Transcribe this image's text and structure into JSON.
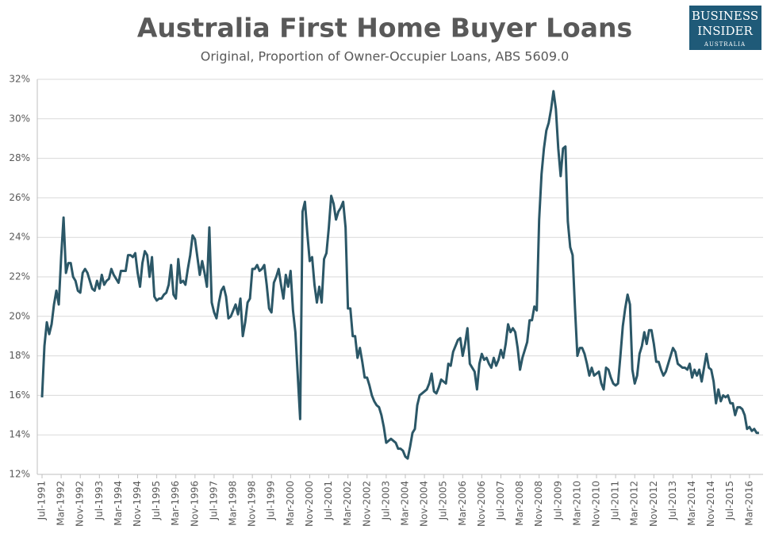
{
  "chart_data": {
    "type": "line",
    "title": "Australia First Home Buyer Loans",
    "subtitle": "Original, Proportion of Owner-Occupier Loans, ABS 5609.0",
    "logo": {
      "line1": "BUSINESS",
      "line2": "INSIDER",
      "line3": "AUSTRALIA"
    },
    "categories": [
      "Jul-1991",
      null,
      null,
      null,
      null,
      null,
      null,
      null,
      "Mar-1992",
      null,
      null,
      null,
      null,
      null,
      null,
      null,
      "Nov-1992",
      null,
      null,
      null,
      null,
      null,
      null,
      null,
      "Jul-1993",
      null,
      null,
      null,
      null,
      null,
      null,
      null,
      "Mar-1994",
      null,
      null,
      null,
      null,
      null,
      null,
      null,
      "Nov-1994",
      null,
      null,
      null,
      null,
      null,
      null,
      null,
      "Jul-1995",
      null,
      null,
      null,
      null,
      null,
      null,
      null,
      "Mar-1996",
      null,
      null,
      null,
      null,
      null,
      null,
      null,
      "Nov-1996",
      null,
      null,
      null,
      null,
      null,
      null,
      null,
      "Jul-1997",
      null,
      null,
      null,
      null,
      null,
      null,
      null,
      "Mar-1998",
      null,
      null,
      null,
      null,
      null,
      null,
      null,
      "Nov-1998",
      null,
      null,
      null,
      null,
      null,
      null,
      null,
      "Jul-1999",
      null,
      null,
      null,
      null,
      null,
      null,
      null,
      "Mar-2000",
      null,
      null,
      null,
      null,
      null,
      null,
      null,
      "Nov-2000",
      null,
      null,
      null,
      null,
      null,
      null,
      null,
      "Jul-2001",
      null,
      null,
      null,
      null,
      null,
      null,
      null,
      "Mar-2002",
      null,
      null,
      null,
      null,
      null,
      null,
      null,
      "Nov-2002",
      null,
      null,
      null,
      null,
      null,
      null,
      null,
      "Jul-2003",
      null,
      null,
      null,
      null,
      null,
      null,
      null,
      "Mar-2004",
      null,
      null,
      null,
      null,
      null,
      null,
      null,
      "Nov-2004",
      null,
      null,
      null,
      null,
      null,
      null,
      null,
      "Jul-2005",
      null,
      null,
      null,
      null,
      null,
      null,
      null,
      "Mar-2006",
      null,
      null,
      null,
      null,
      null,
      null,
      null,
      "Nov-2006",
      null,
      null,
      null,
      null,
      null,
      null,
      null,
      "Jul-2007",
      null,
      null,
      null,
      null,
      null,
      null,
      null,
      "Mar-2008",
      null,
      null,
      null,
      null,
      null,
      null,
      null,
      "Nov-2008",
      null,
      null,
      null,
      null,
      null,
      null,
      null,
      "Jul-2009",
      null,
      null,
      null,
      null,
      null,
      null,
      null,
      "Mar-2010",
      null,
      null,
      null,
      null,
      null,
      null,
      null,
      "Nov-2010",
      null,
      null,
      null,
      null,
      null,
      null,
      null,
      "Jul-2011",
      null,
      null,
      null,
      null,
      null,
      null,
      null,
      "Mar-2012",
      null,
      null,
      null,
      null,
      null,
      null,
      null,
      "Nov-2012",
      null,
      null,
      null,
      null,
      null,
      null,
      null,
      "Jul-2013",
      null,
      null,
      null,
      null,
      null,
      null,
      null,
      "Mar-2014",
      null,
      null,
      null,
      null,
      null,
      null,
      null,
      "Nov-2014",
      null,
      null,
      null,
      null,
      null,
      null,
      null,
      "Jul-2015",
      null,
      null,
      null,
      null,
      null,
      null,
      null,
      "Mar-2016",
      null,
      null,
      null,
      null
    ],
    "series": [
      {
        "color": "#2b5767",
        "values": [
          15.9,
          18.5,
          19.7,
          19.1,
          19.6,
          20.6,
          21.3,
          20.6,
          23.0,
          25.0,
          22.2,
          22.7,
          22.7,
          22.0,
          21.8,
          21.3,
          21.2,
          22.2,
          22.4,
          22.2,
          21.8,
          21.4,
          21.3,
          21.8,
          21.4,
          22.1,
          21.6,
          21.8,
          21.9,
          22.4,
          22.1,
          21.9,
          21.7,
          22.3,
          22.3,
          22.3,
          23.1,
          23.1,
          23.0,
          23.2,
          22.2,
          21.5,
          22.7,
          23.3,
          23.1,
          22.0,
          23.0,
          21.0,
          20.8,
          20.9,
          20.9,
          21.1,
          21.2,
          21.6,
          22.6,
          21.1,
          20.9,
          22.9,
          21.7,
          21.8,
          21.6,
          22.4,
          23.1,
          24.1,
          23.9,
          23.0,
          22.1,
          22.8,
          22.2,
          21.5,
          24.5,
          20.7,
          20.2,
          19.9,
          20.7,
          21.3,
          21.5,
          21.0,
          19.9,
          20.0,
          20.3,
          20.6,
          20.1,
          20.9,
          19.0,
          19.7,
          20.7,
          20.9,
          22.4,
          22.4,
          22.6,
          22.3,
          22.4,
          22.6,
          21.6,
          20.4,
          20.2,
          21.7,
          22.0,
          22.4,
          21.6,
          20.9,
          22.1,
          21.5,
          22.3,
          20.3,
          19.2,
          17.0,
          14.8,
          25.3,
          25.8,
          24.2,
          22.8,
          23.0,
          21.6,
          20.7,
          21.5,
          20.7,
          22.9,
          23.2,
          24.5,
          26.1,
          25.7,
          24.9,
          25.3,
          25.5,
          25.8,
          24.5,
          20.4,
          20.4,
          19.0,
          19.0,
          17.9,
          18.4,
          17.7,
          16.9,
          16.9,
          16.5,
          16.0,
          15.7,
          15.5,
          15.4,
          15.0,
          14.4,
          13.6,
          13.7,
          13.8,
          13.7,
          13.6,
          13.3,
          13.3,
          13.2,
          12.9,
          12.8,
          13.4,
          14.1,
          14.3,
          15.5,
          16.0,
          16.1,
          16.2,
          16.3,
          16.6,
          17.1,
          16.2,
          16.1,
          16.4,
          16.8,
          16.7,
          16.6,
          17.6,
          17.5,
          18.2,
          18.5,
          18.8,
          18.9,
          18.0,
          18.6,
          19.4,
          17.6,
          17.4,
          17.2,
          16.3,
          17.6,
          18.1,
          17.8,
          17.9,
          17.6,
          17.4,
          17.9,
          17.5,
          17.8,
          18.3,
          17.9,
          18.6,
          19.6,
          19.2,
          19.4,
          19.2,
          18.4,
          17.3,
          17.9,
          18.3,
          18.7,
          19.8,
          19.8,
          20.5,
          20.3,
          24.9,
          27.2,
          28.5,
          29.4,
          29.8,
          30.5,
          31.4,
          30.5,
          28.5,
          27.1,
          28.5,
          28.6,
          24.8,
          23.5,
          23.1,
          20.4,
          18.0,
          18.4,
          18.4,
          18.1,
          17.6,
          17.0,
          17.4,
          17.0,
          17.1,
          17.2,
          16.6,
          16.3,
          17.4,
          17.3,
          16.9,
          16.6,
          16.5,
          16.6,
          18.0,
          19.5,
          20.4,
          21.1,
          20.6,
          17.3,
          16.6,
          17.0,
          18.1,
          18.5,
          19.2,
          18.6,
          19.3,
          19.3,
          18.6,
          17.7,
          17.7,
          17.3,
          17.0,
          17.2,
          17.6,
          18.0,
          18.4,
          18.2,
          17.6,
          17.5,
          17.4,
          17.4,
          17.3,
          17.6,
          16.9,
          17.3,
          17.0,
          17.3,
          16.7,
          17.4,
          18.1,
          17.4,
          17.3,
          16.7,
          15.6,
          16.3,
          15.7,
          16.0,
          15.9,
          16.0,
          15.6,
          15.6,
          15.0,
          15.4,
          15.4,
          15.3,
          15.0,
          14.3,
          14.4,
          14.2,
          14.3,
          14.1,
          14.1
        ]
      }
    ],
    "ylim": [
      12,
      32
    ],
    "yticks": [
      {
        "value": 12,
        "label": "12%"
      },
      {
        "value": 14,
        "label": "14%"
      },
      {
        "value": 16,
        "label": "16%"
      },
      {
        "value": 18,
        "label": "18%"
      },
      {
        "value": 20,
        "label": "20%"
      },
      {
        "value": 22,
        "label": "22%"
      },
      {
        "value": 24,
        "label": "24%"
      },
      {
        "value": 26,
        "label": "26%"
      },
      {
        "value": 28,
        "label": "28%"
      },
      {
        "value": 30,
        "label": "30%"
      },
      {
        "value": 32,
        "label": "32%"
      }
    ],
    "grid": true
  }
}
